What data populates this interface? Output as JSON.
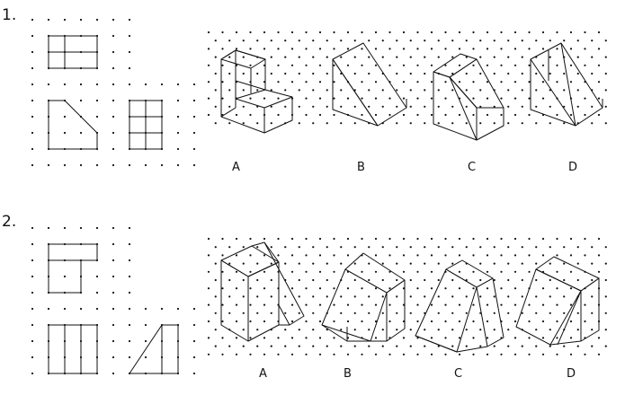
{
  "questions": [
    {
      "number": "1.",
      "options": [
        "A",
        "B",
        "C",
        "D"
      ]
    },
    {
      "number": "2.",
      "options": [
        "A",
        "B",
        "C",
        "D"
      ]
    }
  ]
}
